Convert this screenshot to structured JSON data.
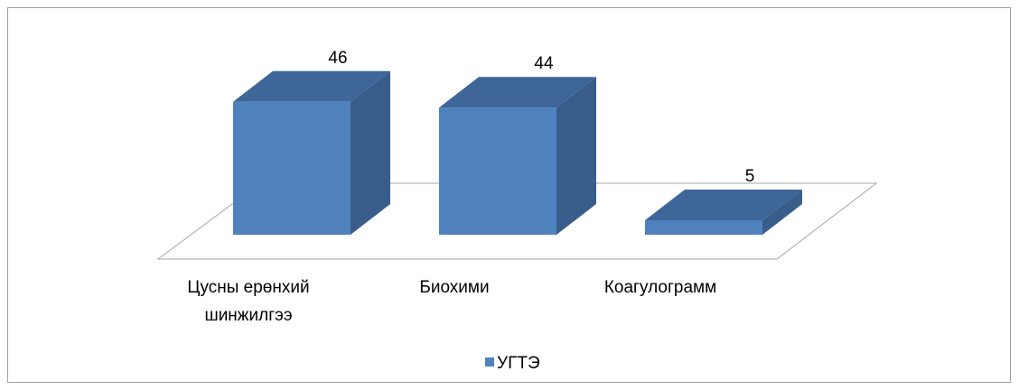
{
  "chart_data": {
    "type": "bar3d",
    "categories": [
      "Цусны ерөнхий шинжилгээ",
      "Биохими",
      "Коагулограмм"
    ],
    "series": [
      {
        "name": "УГТЭ",
        "color": "#4f81bd",
        "values": [
          46,
          44,
          5
        ]
      }
    ]
  }
}
